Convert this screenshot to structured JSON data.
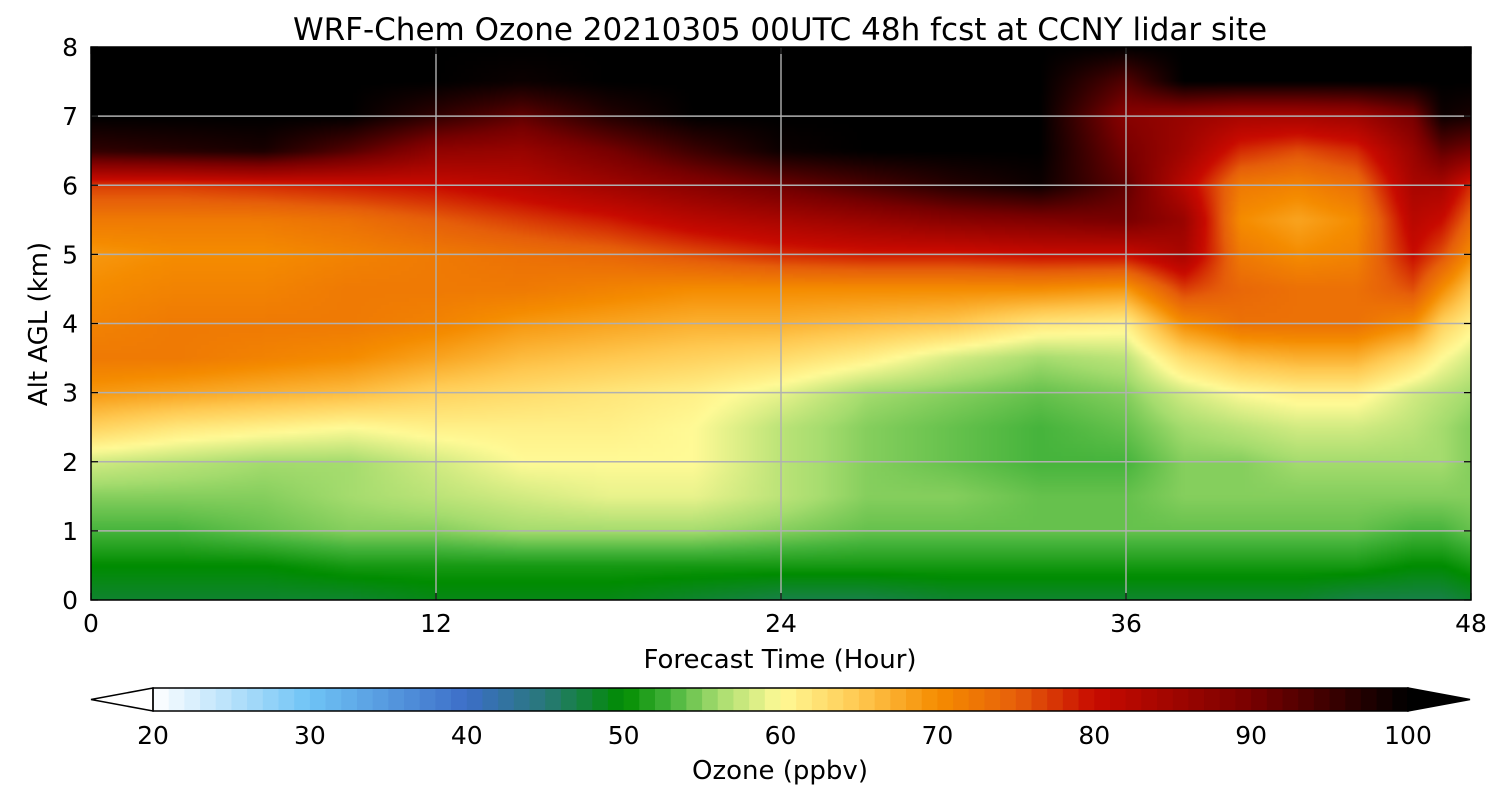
{
  "chart_data": {
    "type": "heatmap",
    "title": "WRF-Chem Ozone  20210305 00UTC 48h fcst at CCNY lidar site",
    "xlabel": "Forecast Time (Hour)",
    "ylabel": "Alt AGL (km)",
    "xlim": [
      0,
      48
    ],
    "ylim": [
      0,
      8
    ],
    "xticks": [
      0,
      12,
      24,
      36,
      48
    ],
    "yticks": [
      0,
      1,
      2,
      3,
      4,
      5,
      6,
      7,
      8
    ],
    "grid": true,
    "colorbar": {
      "label": "Ozone  (ppbv)",
      "min": 20,
      "max": 100,
      "ticks": [
        20,
        30,
        40,
        50,
        60,
        70,
        80,
        90,
        100
      ],
      "extend": "both"
    },
    "x": [
      0,
      3,
      6,
      9,
      12,
      15,
      18,
      21,
      24,
      27,
      30,
      33,
      36,
      38,
      40,
      42,
      44,
      46,
      47,
      48
    ],
    "y": [
      0,
      0.5,
      1,
      1.5,
      2,
      2.5,
      3,
      3.5,
      4,
      4.5,
      5,
      5.5,
      6,
      6.5,
      7,
      7.5,
      8
    ],
    "z": [
      [
        48,
        48,
        48,
        48,
        49,
        49,
        49,
        48,
        47,
        47,
        48,
        48,
        48,
        48,
        48,
        48,
        47,
        47,
        47,
        48
      ],
      [
        50,
        50,
        50,
        51,
        51,
        51,
        51,
        51,
        51,
        51,
        51,
        51,
        51,
        51,
        51,
        51,
        51,
        50,
        50,
        51
      ],
      [
        53,
        53,
        54,
        55,
        55,
        56,
        56,
        56,
        55,
        54,
        54,
        54,
        54,
        54,
        54,
        54,
        54,
        53,
        53,
        54
      ],
      [
        55,
        55,
        55,
        56,
        57,
        58,
        59,
        59,
        57,
        55,
        55,
        54,
        54,
        55,
        55,
        55,
        55,
        55,
        55,
        55
      ],
      [
        58,
        57,
        56,
        56,
        58,
        60,
        60,
        60,
        57,
        55,
        54,
        53,
        53,
        55,
        55,
        56,
        56,
        56,
        56,
        55
      ],
      [
        64,
        62,
        61,
        60,
        61,
        61,
        61,
        60,
        57,
        55,
        54,
        53,
        54,
        56,
        57,
        58,
        58,
        57,
        56,
        55
      ],
      [
        69,
        68,
        67,
        66,
        64,
        63,
        62,
        61,
        59,
        56,
        55,
        54,
        55,
        58,
        60,
        61,
        61,
        58,
        57,
        56
      ],
      [
        72,
        72,
        71,
        70,
        68,
        66,
        65,
        64,
        63,
        61,
        58,
        56,
        57,
        63,
        66,
        67,
        67,
        63,
        60,
        58
      ],
      [
        71,
        72,
        72,
        72,
        71,
        69,
        68,
        67,
        67,
        66,
        65,
        62,
        61,
        70,
        73,
        73,
        73,
        70,
        64,
        61
      ],
      [
        70,
        71,
        71,
        72,
        72,
        72,
        71,
        70,
        70,
        70,
        70,
        70,
        69,
        77,
        74,
        73,
        73,
        76,
        70,
        65
      ],
      [
        69,
        70,
        70,
        71,
        72,
        73,
        74,
        76,
        78,
        79,
        79,
        80,
        80,
        84,
        72,
        70,
        71,
        80,
        76,
        70
      ],
      [
        72,
        72,
        72,
        73,
        75,
        77,
        79,
        82,
        84,
        86,
        88,
        89,
        90,
        86,
        70,
        68,
        70,
        82,
        80,
        74
      ],
      [
        77,
        77,
        78,
        79,
        80,
        82,
        85,
        88,
        91,
        94,
        97,
        99,
        92,
        82,
        72,
        71,
        73,
        84,
        84,
        78
      ],
      [
        96,
        97,
        98,
        93,
        87,
        86,
        90,
        95,
        99,
        100,
        100,
        100,
        90,
        85,
        78,
        76,
        78,
        86,
        92,
        90
      ],
      [
        100,
        100,
        100,
        100,
        96,
        92,
        97,
        100,
        100,
        100,
        100,
        100,
        88,
        86,
        84,
        84,
        85,
        90,
        99,
        98
      ],
      [
        100,
        100,
        100,
        100,
        100,
        99,
        100,
        100,
        100,
        100,
        100,
        100,
        93,
        100,
        100,
        100,
        100,
        100,
        100,
        100
      ],
      [
        100,
        100,
        100,
        100,
        100,
        100,
        100,
        100,
        100,
        100,
        100,
        100,
        100,
        100,
        100,
        100,
        100,
        100,
        100,
        100
      ]
    ]
  }
}
